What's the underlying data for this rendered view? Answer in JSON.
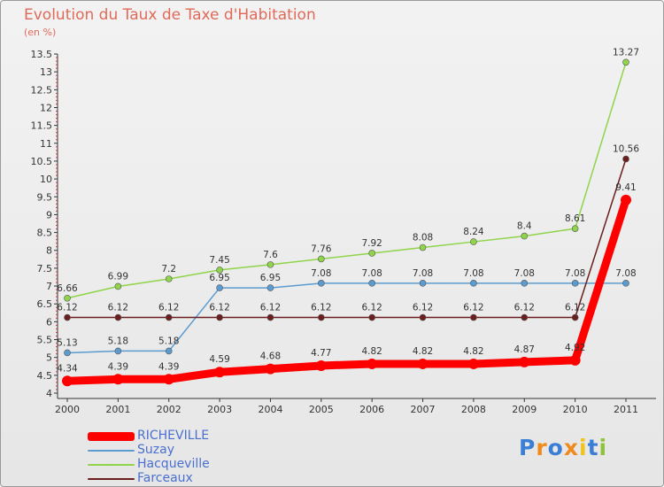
{
  "title": "Evolution du Taux de Taxe d'Habitation",
  "subtitle": "(en %)",
  "logo": "Proxiti",
  "chart_data": {
    "type": "line",
    "x": [
      "2000",
      "2001",
      "2002",
      "2003",
      "2004",
      "2005",
      "2006",
      "2007",
      "2008",
      "2009",
      "2010",
      "2011"
    ],
    "ylim": [
      4,
      13.5
    ],
    "yticks": [
      "4",
      "4.5",
      "5",
      "5.5",
      "6",
      "6.5",
      "7",
      "7.5",
      "8",
      "8.5",
      "9",
      "9.5",
      "10",
      "10.5",
      "11",
      "11.5",
      "12",
      "12.5",
      "13",
      "13.5"
    ],
    "grid": false,
    "legend_position": "bottom-left",
    "series": [
      {
        "name": "Hacqueville",
        "color": "#8fd44a",
        "values": [
          6.66,
          6.99,
          7.2,
          7.45,
          7.6,
          7.76,
          7.92,
          8.08,
          8.24,
          8.4,
          8.61,
          13.27
        ],
        "labels": [
          "6.66",
          "6.99",
          "7.2",
          "7.45",
          "7.6",
          "7.76",
          "7.92",
          "8.08",
          "8.24",
          "8.4",
          "8.61",
          "13.27"
        ]
      },
      {
        "name": "Suzay",
        "color": "#5b9bd0",
        "values": [
          5.13,
          5.18,
          5.18,
          6.95,
          6.95,
          7.08,
          7.08,
          7.08,
          7.08,
          7.08,
          7.08,
          7.08
        ],
        "labels": [
          "5.13",
          "5.18",
          "5.18",
          "6.95",
          "6.95",
          "7.08",
          "7.08",
          "7.08",
          "7.08",
          "7.08",
          "7.08",
          "7.08"
        ]
      },
      {
        "name": "Farceaux",
        "color": "#6b1e1e",
        "values": [
          6.12,
          6.12,
          6.12,
          6.12,
          6.12,
          6.12,
          6.12,
          6.12,
          6.12,
          6.12,
          6.12,
          10.56
        ],
        "labels": [
          "6.12",
          "6.12",
          "6.12",
          "6.12",
          "6.12",
          "6.12",
          "6.12",
          "6.12",
          "6.12",
          "6.12",
          "6.12",
          "10.56"
        ]
      },
      {
        "name": "RICHEVILLE",
        "color": "#ff0000",
        "values": [
          4.34,
          4.39,
          4.39,
          4.59,
          4.68,
          4.77,
          4.82,
          4.82,
          4.82,
          4.87,
          4.92,
          9.41
        ],
        "labels": [
          "4.34",
          "4.39",
          "4.39",
          "4.59",
          "4.68",
          "4.77",
          "4.82",
          "4.82",
          "4.82",
          "4.87",
          "4.92",
          "9.41"
        ]
      }
    ]
  },
  "legend": [
    {
      "name": "RICHEVILLE",
      "color": "#ff0000"
    },
    {
      "name": "Suzay",
      "color": "#5b9bd0"
    },
    {
      "name": "Hacqueville",
      "color": "#8fd44a"
    },
    {
      "name": "Farceaux",
      "color": "#6b1e1e"
    }
  ]
}
